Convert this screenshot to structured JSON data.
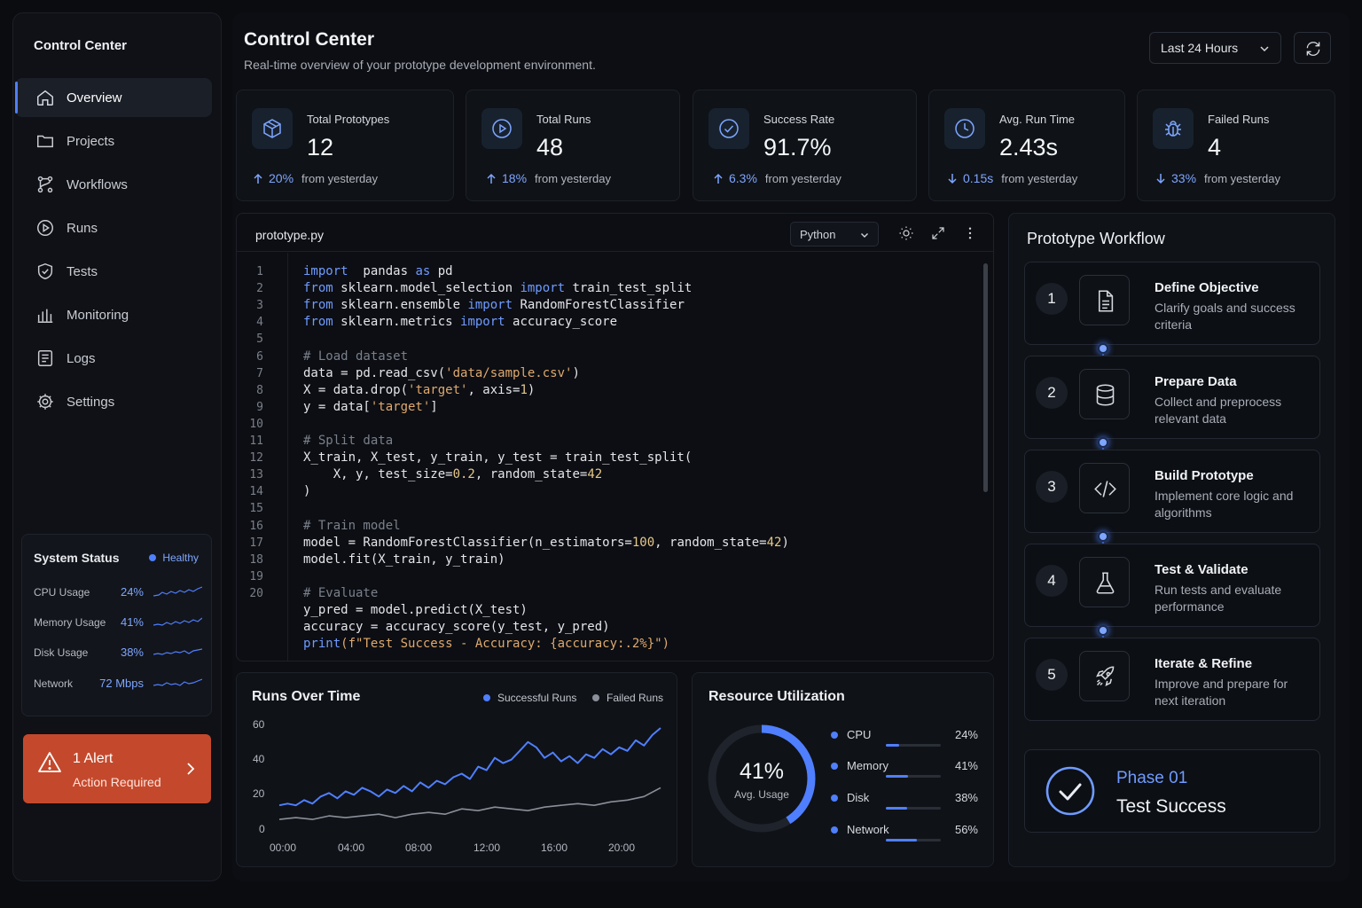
{
  "app": {
    "sidebar_title": "Control Center"
  },
  "nav": [
    {
      "label": "Overview",
      "icon": "home-icon",
      "active": true
    },
    {
      "label": "Projects",
      "icon": "folder-icon"
    },
    {
      "label": "Workflows",
      "icon": "workflow-icon"
    },
    {
      "label": "Runs",
      "icon": "play-icon"
    },
    {
      "label": "Tests",
      "icon": "shield-icon"
    },
    {
      "label": "Monitoring",
      "icon": "bar-chart-icon"
    },
    {
      "label": "Logs",
      "icon": "log-icon"
    },
    {
      "label": "Settings",
      "icon": "gear-icon"
    }
  ],
  "system_status": {
    "title": "System Status",
    "badge": "Healthy",
    "rows": [
      {
        "label": "CPU Usage",
        "value": "24%"
      },
      {
        "label": "Memory Usage",
        "value": "41%"
      },
      {
        "label": "Disk Usage",
        "value": "38%"
      },
      {
        "label": "Network",
        "value": "72 Mbps"
      }
    ]
  },
  "alert": {
    "title": "1 Alert",
    "subtitle": "Action Required"
  },
  "header": {
    "title": "Control Center",
    "subtitle": "Real-time overview of your prototype development environment.",
    "time_range": "Last 24 Hours"
  },
  "stats": [
    {
      "label": "Total Prototypes",
      "value": "12",
      "change": "20%",
      "direction": "up",
      "suffix": "from yesterday",
      "icon": "cube-icon"
    },
    {
      "label": "Total Runs",
      "value": "48",
      "change": "18%",
      "direction": "up",
      "suffix": "from yesterday",
      "icon": "play-circle-icon"
    },
    {
      "label": "Success Rate",
      "value": "91.7%",
      "change": "6.3%",
      "direction": "up",
      "suffix": "from yesterday",
      "icon": "check-circle-icon"
    },
    {
      "label": "Avg. Run Time",
      "value": "2.43s",
      "change": "0.15s",
      "direction": "down",
      "suffix": "from yesterday",
      "icon": "clock-icon"
    },
    {
      "label": "Failed Runs",
      "value": "4",
      "change": "33%",
      "direction": "down",
      "suffix": "from yesterday",
      "icon": "bug-icon"
    }
  ],
  "editor": {
    "file_name": "prototype.py",
    "language": "Python",
    "line_numbers": [
      "1",
      "2",
      "3",
      "4",
      "5",
      "6",
      "7",
      "8",
      "9",
      "10",
      "11",
      "12",
      "13",
      "14",
      "15",
      "16",
      "17",
      "18",
      "19",
      "20"
    ],
    "lines": [
      [
        [
          "kw",
          "import"
        ],
        [
          "",
          "  pandas "
        ],
        [
          "kw",
          "as"
        ],
        [
          "",
          " pd"
        ]
      ],
      [
        [
          "kw",
          "from"
        ],
        [
          "",
          " sklearn.model_selection "
        ],
        [
          "kw",
          "import"
        ],
        [
          "",
          " train_test_split"
        ]
      ],
      [
        [
          "kw",
          "from"
        ],
        [
          "",
          " sklearn.ensemble "
        ],
        [
          "kw",
          "import"
        ],
        [
          "",
          " RandomForestClassifier"
        ]
      ],
      [
        [
          "kw",
          "from"
        ],
        [
          "",
          " sklearn.metrics "
        ],
        [
          "kw",
          "import"
        ],
        [
          "",
          " accuracy_score"
        ]
      ],
      [],
      [
        [
          "cm",
          "# Load dataset"
        ]
      ],
      [
        [
          "",
          "data = pd.read_csv("
        ],
        [
          "st",
          "'data/sample.csv'"
        ],
        [
          "",
          ")"
        ]
      ],
      [
        [
          "",
          "X = data.drop("
        ],
        [
          "st",
          "'target'"
        ],
        [
          "",
          ", axis="
        ],
        [
          "nm",
          "1"
        ],
        [
          "",
          ")"
        ]
      ],
      [
        [
          "",
          "y = data["
        ],
        [
          "st",
          "'target'"
        ],
        [
          "",
          "]"
        ]
      ],
      [],
      [
        [
          "cm",
          "# Split data"
        ]
      ],
      [
        [
          "",
          "X_train, X_test, y_train, y_test = train_test_split("
        ]
      ],
      [
        [
          "",
          "    X, y, test_size="
        ],
        [
          "nm",
          "0.2"
        ],
        [
          "",
          ", random_state="
        ],
        [
          "nm",
          "42"
        ]
      ],
      [
        [
          "",
          ")"
        ]
      ],
      [],
      [
        [
          "cm",
          "# Train model"
        ]
      ],
      [
        [
          "",
          "model = RandomForestClassifier(n_estimators="
        ],
        [
          "nm",
          "100"
        ],
        [
          "",
          ", random_state="
        ],
        [
          "nm",
          "42"
        ],
        [
          "",
          ")"
        ]
      ],
      [
        [
          "",
          "model.fit(X_train, y_train)"
        ]
      ],
      [],
      [
        [
          "cm",
          "# Evaluate"
        ]
      ],
      [
        [
          "",
          "y_pred = model.predict(X_test)"
        ]
      ],
      [
        [
          "",
          "accuracy = accuracy_score(y_test, y_pred)"
        ]
      ],
      [
        [
          "kw",
          "print"
        ],
        [
          "st",
          "(f\"Test Success - Accuracy: {accuracy:.2%}\")"
        ]
      ]
    ]
  },
  "chart_data": {
    "type": "line",
    "title": "Runs Over Time",
    "x_ticks": [
      "00:00",
      "04:00",
      "08:00",
      "12:00",
      "16:00",
      "20:00"
    ],
    "y_ticks": [
      "60",
      "40",
      "20",
      "0"
    ],
    "ylim": [
      0,
      60
    ],
    "legend_position": "top-right",
    "series": [
      {
        "name": "Successful Runs",
        "color": "#4f7fff",
        "x": [
          0,
          0.5,
          1,
          1.5,
          2,
          2.5,
          3,
          3.5,
          4,
          4.5,
          5,
          5.5,
          6,
          6.5,
          7,
          7.5,
          8,
          8.5,
          9,
          9.5,
          10,
          10.5,
          11,
          11.5,
          12,
          12.5,
          13,
          13.5,
          14,
          14.5,
          15,
          15.5,
          16,
          16.5,
          17,
          17.5,
          18,
          18.5,
          19,
          19.5,
          20,
          20.5,
          21,
          21.5,
          22,
          22.5,
          23
        ],
        "values": [
          14,
          15,
          14,
          17,
          15,
          19,
          21,
          18,
          22,
          20,
          24,
          22,
          19,
          23,
          21,
          25,
          22,
          27,
          24,
          28,
          26,
          30,
          32,
          29,
          36,
          34,
          41,
          38,
          40,
          45,
          50,
          47,
          41,
          44,
          39,
          42,
          38,
          43,
          41,
          46,
          43,
          47,
          45,
          51,
          48,
          54,
          58
        ]
      },
      {
        "name": "Failed Runs",
        "color": "#8a8f99",
        "x": [
          0,
          1,
          2,
          3,
          4,
          5,
          6,
          7,
          8,
          9,
          10,
          11,
          12,
          13,
          14,
          15,
          16,
          17,
          18,
          19,
          20,
          21,
          22,
          23
        ],
        "values": [
          6,
          7,
          6,
          8,
          7,
          8,
          9,
          7,
          9,
          10,
          9,
          12,
          11,
          13,
          12,
          11,
          13,
          14,
          15,
          14,
          16,
          17,
          19,
          24
        ]
      }
    ]
  },
  "resource": {
    "title": "Resource Utilization",
    "donut_value": "41%",
    "donut_label": "Avg. Usage",
    "donut_fraction": 0.41,
    "rows": [
      {
        "label": "CPU",
        "value": "24%",
        "fraction": 0.24
      },
      {
        "label": "Memory",
        "value": "41%",
        "fraction": 0.41
      },
      {
        "label": "Disk",
        "value": "38%",
        "fraction": 0.38
      },
      {
        "label": "Network",
        "value": "56%",
        "fraction": 0.56
      }
    ]
  },
  "workflow": {
    "title": "Prototype Workflow",
    "steps": [
      {
        "num": "1",
        "name": "Define Objective",
        "desc": "Clarify goals and success criteria",
        "icon": "document-icon"
      },
      {
        "num": "2",
        "name": "Prepare Data",
        "desc": "Collect and preprocess relevant data",
        "icon": "database-icon"
      },
      {
        "num": "3",
        "name": "Build Prototype",
        "desc": "Implement core logic and algorithms",
        "icon": "code-icon"
      },
      {
        "num": "4",
        "name": "Test & Validate",
        "desc": "Run tests and evaluate performance",
        "icon": "flask-icon"
      },
      {
        "num": "5",
        "name": "Iterate & Refine",
        "desc": "Improve and prepare for next iteration",
        "icon": "rocket-icon"
      }
    ],
    "phase_label": "Phase 01",
    "phase_status": "Test Success"
  }
}
